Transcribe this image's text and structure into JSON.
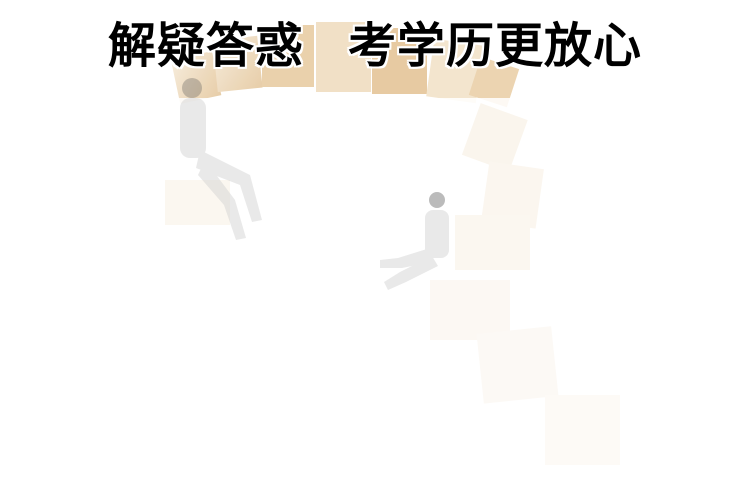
{
  "headline": {
    "left": "解疑答惑",
    "right": "考学历更放心"
  },
  "colors": {
    "background": "#ffffff",
    "text": "#000000",
    "block_light": "#f6ead8",
    "block_mid": "#efd9b8",
    "block_dark": "#e2c49a",
    "figure": "#d9d9d9"
  }
}
